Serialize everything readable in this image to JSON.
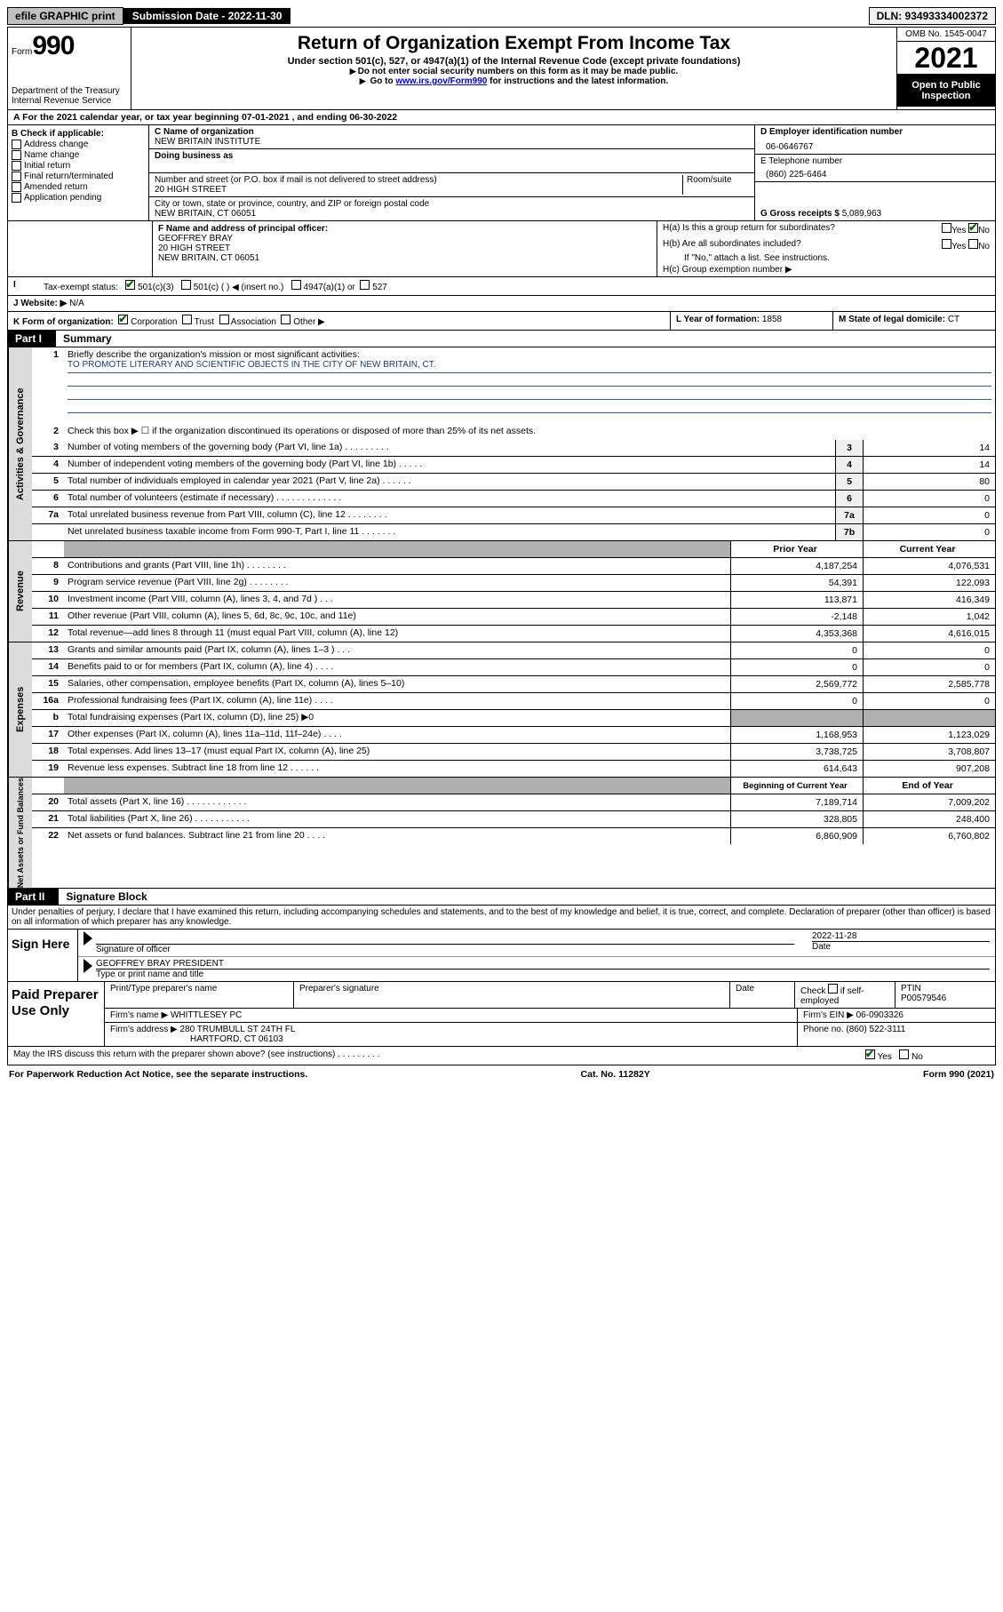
{
  "topbar": {
    "efile": "efile GRAPHIC print",
    "submission": "Submission Date - 2022-11-30",
    "dln": "DLN: 93493334002372"
  },
  "header": {
    "form_word": "Form",
    "form_num": "990",
    "dept": "Department of the Treasury",
    "irs": "Internal Revenue Service",
    "title": "Return of Organization Exempt From Income Tax",
    "sub1": "Under section 501(c), 527, or 4947(a)(1) of the Internal Revenue Code (except private foundations)",
    "sub2a": "Do not enter social security numbers on this form as it may be made public.",
    "sub2b_pre": "Go to ",
    "sub2b_link": "www.irs.gov/Form990",
    "sub2b_post": " for instructions and the latest information.",
    "omb": "OMB No. 1545-0047",
    "year": "2021",
    "inspect": "Open to Public Inspection"
  },
  "rowA": "A For the 2021 calendar year, or tax year beginning 07-01-2021   , and ending 06-30-2022",
  "colB": {
    "title": "B Check if applicable:",
    "items": [
      "Address change",
      "Name change",
      "Initial return",
      "Final return/terminated",
      "Amended return",
      "Application pending"
    ]
  },
  "colC": {
    "name_label": "C Name of organization",
    "name": "NEW BRITAIN INSTITUTE",
    "dba_label": "Doing business as",
    "addr_label": "Number and street (or P.O. box if mail is not delivered to street address)",
    "room_label": "Room/suite",
    "addr": "20 HIGH STREET",
    "city_label": "City or town, state or province, country, and ZIP or foreign postal code",
    "city": "NEW BRITAIN, CT  06051"
  },
  "colDE": {
    "d_label": "D Employer identification number",
    "ein": "06-0646767",
    "e_label": "E Telephone number",
    "phone": "(860) 225-6464",
    "g_label": "G Gross receipts $",
    "gross": "5,089,963"
  },
  "rowF": {
    "label": "F Name and address of principal officer:",
    "name": "GEOFFREY BRAY",
    "addr": "20 HIGH STREET",
    "city": "NEW BRITAIN, CT  06051"
  },
  "rowH": {
    "ha": "H(a)  Is this a group return for subordinates?",
    "hb": "H(b)  Are all subordinates included?",
    "hb_note": "If \"No,\" attach a list. See instructions.",
    "hc": "H(c)  Group exemption number ▶",
    "yes": "Yes",
    "no": "No"
  },
  "rowI": {
    "label": "Tax-exempt status:",
    "o1": "501(c)(3)",
    "o2": "501(c) (  ) ◀ (insert no.)",
    "o3": "4947(a)(1) or",
    "o4": "527"
  },
  "rowJ": {
    "label": "J Website: ▶",
    "val": "N/A"
  },
  "rowK": {
    "label": "K Form of organization:",
    "corp": "Corporation",
    "trust": "Trust",
    "assoc": "Association",
    "other": "Other ▶"
  },
  "rowL": {
    "label": "L Year of formation:",
    "val": "1858"
  },
  "rowM": {
    "label": "M State of legal domicile:",
    "val": "CT"
  },
  "partI": {
    "label": "Part I",
    "title": "Summary"
  },
  "mission": {
    "q": "Briefly describe the organization's mission or most significant activities:",
    "text": "TO PROMOTE LITERARY AND SCIENTIFIC OBJECTS IN THE CITY OF NEW BRITAIN, CT."
  },
  "line2": "Check this box ▶ ☐  if the organization discontinued its operations or disposed of more than 25% of its net assets.",
  "gov_lines": [
    {
      "n": "3",
      "t": "Number of voting members of the governing body (Part VI, line 1a)   .    .    .    .    .    .    .    .    .",
      "box": "3",
      "v": "14"
    },
    {
      "n": "4",
      "t": "Number of independent voting members of the governing body (Part VI, line 1b)   .    .    .    .    .",
      "box": "4",
      "v": "14"
    },
    {
      "n": "5",
      "t": "Total number of individuals employed in calendar year 2021 (Part V, line 2a)   .    .    .    .    .    .",
      "box": "5",
      "v": "80"
    },
    {
      "n": "6",
      "t": "Total number of volunteers (estimate if necessary)   .    .    .    .    .    .    .    .    .    .    .    .    .",
      "box": "6",
      "v": "0"
    },
    {
      "n": "7a",
      "t": "Total unrelated business revenue from Part VIII, column (C), line 12   .    .    .    .    .    .    .    .",
      "box": "7a",
      "v": "0"
    },
    {
      "n": "",
      "t": "Net unrelated business taxable income from Form 990-T, Part I, line 11   .    .    .    .    .    .    .",
      "box": "7b",
      "v": "0"
    }
  ],
  "col_hdrs": {
    "prior": "Prior Year",
    "current": "Current Year",
    "beg": "Beginning of Current Year",
    "end": "End of Year"
  },
  "rev_lines": [
    {
      "n": "8",
      "t": "Contributions and grants (Part VIII, line 1h)   .    .    .    .    .    .    .    .",
      "p": "4,187,254",
      "c": "4,076,531"
    },
    {
      "n": "9",
      "t": "Program service revenue (Part VIII, line 2g)   .    .    .    .    .    .    .    .",
      "p": "54,391",
      "c": "122,093"
    },
    {
      "n": "10",
      "t": "Investment income (Part VIII, column (A), lines 3, 4, and 7d )   .    .    .",
      "p": "113,871",
      "c": "416,349"
    },
    {
      "n": "11",
      "t": "Other revenue (Part VIII, column (A), lines 5, 6d, 8c, 9c, 10c, and 11e)",
      "p": "-2,148",
      "c": "1,042"
    },
    {
      "n": "12",
      "t": "Total revenue—add lines 8 through 11 (must equal Part VIII, column (A), line 12)",
      "p": "4,353,368",
      "c": "4,616,015"
    }
  ],
  "exp_lines": [
    {
      "n": "13",
      "t": "Grants and similar amounts paid (Part IX, column (A), lines 1–3 )   .    .    .",
      "p": "0",
      "c": "0"
    },
    {
      "n": "14",
      "t": "Benefits paid to or for members (Part IX, column (A), line 4)   .    .    .    .",
      "p": "0",
      "c": "0"
    },
    {
      "n": "15",
      "t": "Salaries, other compensation, employee benefits (Part IX, column (A), lines 5–10)",
      "p": "2,569,772",
      "c": "2,585,778"
    },
    {
      "n": "16a",
      "t": "Professional fundraising fees (Part IX, column (A), line 11e)   .    .    .    .",
      "p": "0",
      "c": "0"
    },
    {
      "n": "b",
      "t": "Total fundraising expenses (Part IX, column (D), line 25) ▶0",
      "p": "",
      "c": "",
      "shade": true
    },
    {
      "n": "17",
      "t": "Other expenses (Part IX, column (A), lines 11a–11d, 11f–24e)   .    .    .    .",
      "p": "1,168,953",
      "c": "1,123,029"
    },
    {
      "n": "18",
      "t": "Total expenses. Add lines 13–17 (must equal Part IX, column (A), line 25)",
      "p": "3,738,725",
      "c": "3,708,807"
    },
    {
      "n": "19",
      "t": "Revenue less expenses. Subtract line 18 from line 12   .    .    .    .    .    .",
      "p": "614,643",
      "c": "907,208"
    }
  ],
  "net_lines": [
    {
      "n": "20",
      "t": "Total assets (Part X, line 16)   .    .    .    .    .    .    .    .    .    .    .    .",
      "p": "7,189,714",
      "c": "7,009,202"
    },
    {
      "n": "21",
      "t": "Total liabilities (Part X, line 26)   .    .    .    .    .    .    .    .    .    .    .",
      "p": "328,805",
      "c": "248,400"
    },
    {
      "n": "22",
      "t": "Net assets or fund balances. Subtract line 21 from line 20   .    .    .    .",
      "p": "6,860,909",
      "c": "6,760,802"
    }
  ],
  "vtabs": {
    "gov": "Activities & Governance",
    "rev": "Revenue",
    "exp": "Expenses",
    "net": "Net Assets or Fund Balances"
  },
  "partII": {
    "label": "Part II",
    "title": "Signature Block"
  },
  "sig": {
    "intro": "Under penalties of perjury, I declare that I have examined this return, including accompanying schedules and statements, and to the best of my knowledge and belief, it is true, correct, and complete. Declaration of preparer (other than officer) is based on all information of which preparer has any knowledge.",
    "here": "Sign Here",
    "sig_label": "Signature of officer",
    "date_label": "Date",
    "date": "2022-11-28",
    "name": "GEOFFREY BRAY PRESIDENT",
    "name_label": "Type or print name and title"
  },
  "prep": {
    "here": "Paid Preparer Use Only",
    "h1": "Print/Type preparer's name",
    "h2": "Preparer's signature",
    "h3": "Date",
    "h4_a": "Check",
    "h4_b": "if self-employed",
    "h5": "PTIN",
    "ptin": "P00579546",
    "firm_label": "Firm's name    ▶",
    "firm": "WHITTLESEY PC",
    "ein_label": "Firm's EIN ▶",
    "ein": "06-0903326",
    "addr_label": "Firm's address ▶",
    "addr1": "280 TRUMBULL ST 24TH FL",
    "addr2": "HARTFORD, CT  06103",
    "phone_label": "Phone no.",
    "phone": "(860) 522-3111"
  },
  "discuss": {
    "q": "May the IRS discuss this return with the preparer shown above? (see instructions)   .    .    .    .    .    .    .    .    .",
    "yes": "Yes",
    "no": "No"
  },
  "footer": {
    "left": "For Paperwork Reduction Act Notice, see the separate instructions.",
    "mid": "Cat. No. 11282Y",
    "right": "Form 990 (2021)"
  }
}
